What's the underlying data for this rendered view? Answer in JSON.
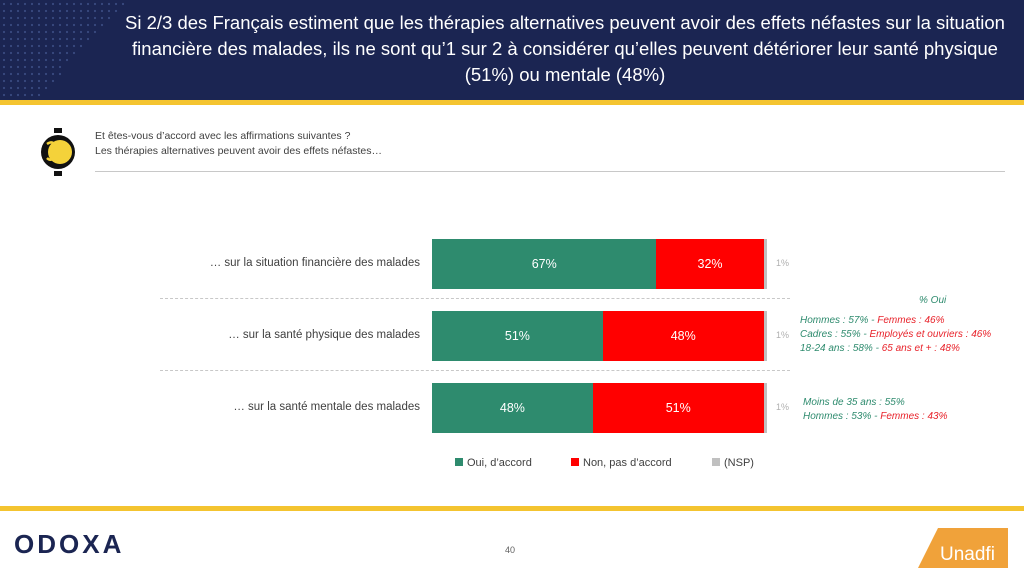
{
  "title": "Si 2/3 des Français estiment que les thérapies alternatives peuvent avoir des effets néfastes sur la situation financière des malades, ils ne sont qu’1 sur 2 à considérer qu’elles peuvent détériorer leur santé physique (51%) ou mentale (48%)",
  "question": {
    "line1": "Et êtes-vous d’accord avec les affirmations suivantes ?",
    "line2": "Les thérapies alternatives peuvent avoir des effets néfastes…"
  },
  "colors": {
    "header": "#1b2552",
    "accent": "#f4c430",
    "oui": "#2e8b6e",
    "non": "#ff0000",
    "nsp": "#c0c0c0"
  },
  "chart_data": {
    "type": "bar",
    "orientation": "horizontal",
    "stacked": true,
    "categories": [
      "… sur la situation financière des malades",
      "… sur la santé physique des malades",
      "… sur la santé mentale des malades"
    ],
    "series": [
      {
        "name": "Oui, d’accord",
        "values": [
          67,
          51,
          48
        ],
        "labels": [
          "67%",
          "51%",
          "48%"
        ]
      },
      {
        "name": "Non, pas d’accord",
        "values": [
          32,
          48,
          51
        ],
        "labels": [
          "32%",
          "48%",
          "51%"
        ]
      },
      {
        "name": "(NSP)",
        "values": [
          1,
          1,
          1
        ],
        "labels": [
          "1%",
          "1%",
          "1%"
        ]
      }
    ],
    "legend_position": "bottom"
  },
  "notes": {
    "header": "% Oui",
    "physique": [
      {
        "a": "Hommes : 57%",
        "sep": " - ",
        "b": "Femmes : 46%"
      },
      {
        "a": "Cadres : 55%",
        "sep": " - ",
        "b": "Employés et ouvriers : 46%"
      },
      {
        "a": "18-24 ans : 58%",
        "sep": " - ",
        "b": "65 ans et + : 48%"
      }
    ],
    "mentale": [
      {
        "a": "Moins de 35 ans : 55%",
        "sep": "",
        "b": ""
      },
      {
        "a": "Hommes : 53%",
        "sep": " - ",
        "b": "Femmes : 43%"
      }
    ]
  },
  "footer": {
    "brand": "ODOXA",
    "page_number": "40",
    "partner": "Unadfi"
  }
}
